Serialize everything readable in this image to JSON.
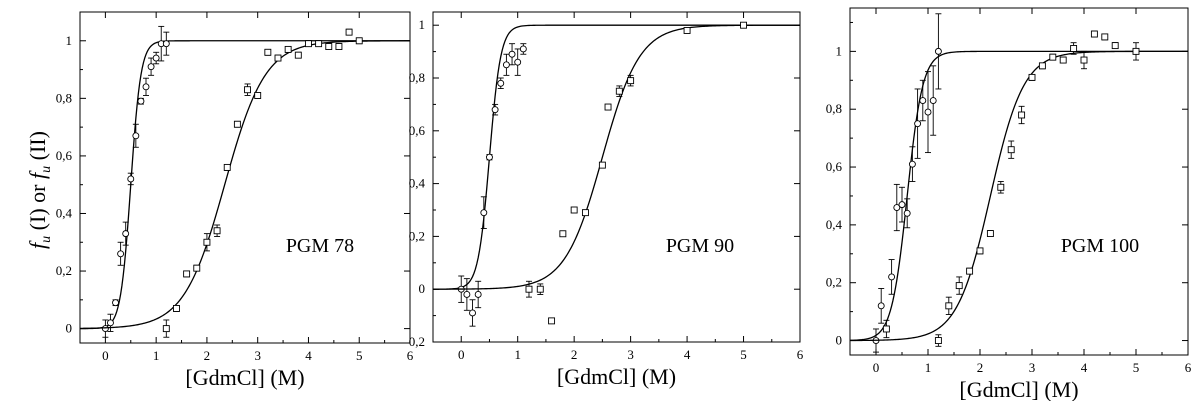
{
  "figure": {
    "ylabel": {
      "f": "f",
      "sub": "u",
      "first": " (I) or ",
      "second": " (II)"
    }
  },
  "chart_data": [
    {
      "type": "scatter",
      "title": "PGM 78",
      "xlabel": "[GdmCl] (M)",
      "xlim": [
        -0.5,
        6
      ],
      "ylim": [
        -0.05,
        1.1
      ],
      "xticks": [
        0,
        1,
        2,
        3,
        4,
        5,
        6
      ],
      "yticks": [
        0,
        0.2,
        0.4,
        0.6,
        0.8,
        1
      ],
      "ytick_labels": [
        "0",
        "0,2",
        "0,4",
        "0,6",
        "0,8",
        "1"
      ],
      "series": [
        {
          "marker": "circle",
          "fit": {
            "midpoint": 0.5,
            "width": 0.1
          },
          "points": [
            {
              "x": 0.0,
              "y": 0.0,
              "err": 0.03
            },
            {
              "x": 0.1,
              "y": 0.02,
              "err": 0.03
            },
            {
              "x": 0.2,
              "y": 0.09,
              "err": 0.01
            },
            {
              "x": 0.3,
              "y": 0.26,
              "err": 0.04
            },
            {
              "x": 0.4,
              "y": 0.33,
              "err": 0.04
            },
            {
              "x": 0.5,
              "y": 0.52,
              "err": 0.02
            },
            {
              "x": 0.6,
              "y": 0.67,
              "err": 0.04
            },
            {
              "x": 0.7,
              "y": 0.79,
              "err": 0.01
            },
            {
              "x": 0.8,
              "y": 0.84,
              "err": 0.03
            },
            {
              "x": 0.9,
              "y": 0.91,
              "err": 0.03
            },
            {
              "x": 1.0,
              "y": 0.94,
              "err": 0.02
            },
            {
              "x": 1.1,
              "y": 0.99,
              "err": 0.06
            },
            {
              "x": 1.2,
              "y": 0.99,
              "err": 0.04
            }
          ]
        },
        {
          "marker": "square",
          "fit": {
            "midpoint": 2.35,
            "width": 0.4
          },
          "points": [
            {
              "x": 1.2,
              "y": 0.0,
              "err": 0.03
            },
            {
              "x": 1.4,
              "y": 0.07,
              "err": 0.01
            },
            {
              "x": 1.6,
              "y": 0.19,
              "err": 0.01
            },
            {
              "x": 1.8,
              "y": 0.21,
              "err": 0.01
            },
            {
              "x": 2.0,
              "y": 0.3,
              "err": 0.03
            },
            {
              "x": 2.2,
              "y": 0.34,
              "err": 0.02
            },
            {
              "x": 2.4,
              "y": 0.56,
              "err": 0.01
            },
            {
              "x": 2.6,
              "y": 0.71,
              "err": 0.01
            },
            {
              "x": 2.8,
              "y": 0.83,
              "err": 0.02
            },
            {
              "x": 3.0,
              "y": 0.81,
              "err": 0.01
            },
            {
              "x": 3.2,
              "y": 0.96,
              "err": 0.01
            },
            {
              "x": 3.4,
              "y": 0.94,
              "err": 0.01
            },
            {
              "x": 3.6,
              "y": 0.97,
              "err": 0.01
            },
            {
              "x": 3.8,
              "y": 0.95,
              "err": 0.01
            },
            {
              "x": 4.0,
              "y": 0.99,
              "err": 0.01
            },
            {
              "x": 4.2,
              "y": 0.99,
              "err": 0.01
            },
            {
              "x": 4.4,
              "y": 0.98,
              "err": 0.01
            },
            {
              "x": 4.6,
              "y": 0.98,
              "err": 0.01
            },
            {
              "x": 4.8,
              "y": 1.03,
              "err": 0.01
            },
            {
              "x": 5.0,
              "y": 1.0,
              "err": 0.01
            }
          ]
        }
      ]
    },
    {
      "type": "scatter",
      "title": "PGM 90",
      "xlabel": "[GdmCl] (M)",
      "xlim": [
        -0.5,
        6
      ],
      "ylim": [
        -0.2,
        1.05
      ],
      "xticks": [
        0,
        1,
        2,
        3,
        4,
        5,
        6
      ],
      "yticks": [
        -0.2,
        0,
        0.2,
        0.4,
        0.6,
        0.8,
        1
      ],
      "ytick_labels": [
        "-0,2",
        "0",
        "0,2",
        "0,4",
        "0,6",
        "0,8",
        "1"
      ],
      "series": [
        {
          "marker": "circle",
          "fit": {
            "midpoint": 0.5,
            "width": 0.1
          },
          "points": [
            {
              "x": 0.0,
              "y": 0.0,
              "err": 0.05
            },
            {
              "x": 0.1,
              "y": -0.02,
              "err": 0.06
            },
            {
              "x": 0.2,
              "y": -0.09,
              "err": 0.05
            },
            {
              "x": 0.3,
              "y": -0.02,
              "err": 0.05
            },
            {
              "x": 0.4,
              "y": 0.29,
              "err": 0.06
            },
            {
              "x": 0.5,
              "y": 0.5,
              "err": 0.01
            },
            {
              "x": 0.6,
              "y": 0.68,
              "err": 0.02
            },
            {
              "x": 0.7,
              "y": 0.78,
              "err": 0.02
            },
            {
              "x": 0.8,
              "y": 0.85,
              "err": 0.04
            },
            {
              "x": 0.9,
              "y": 0.89,
              "err": 0.04
            },
            {
              "x": 1.0,
              "y": 0.86,
              "err": 0.05
            },
            {
              "x": 1.1,
              "y": 0.91,
              "err": 0.02
            }
          ]
        },
        {
          "marker": "square",
          "fit": {
            "midpoint": 2.5,
            "width": 0.33
          },
          "points": [
            {
              "x": 1.2,
              "y": 0.0,
              "err": 0.03
            },
            {
              "x": 1.4,
              "y": 0.0,
              "err": 0.02
            },
            {
              "x": 1.6,
              "y": -0.12,
              "err": 0.005
            },
            {
              "x": 1.8,
              "y": 0.21,
              "err": 0.01
            },
            {
              "x": 2.0,
              "y": 0.3,
              "err": 0.01
            },
            {
              "x": 2.2,
              "y": 0.29,
              "err": 0.01
            },
            {
              "x": 2.5,
              "y": 0.47,
              "err": 0.01
            },
            {
              "x": 2.6,
              "y": 0.69,
              "err": 0.01
            },
            {
              "x": 2.8,
              "y": 0.75,
              "err": 0.02
            },
            {
              "x": 3.0,
              "y": 0.79,
              "err": 0.02
            },
            {
              "x": 4.0,
              "y": 0.98,
              "err": 0.01
            },
            {
              "x": 5.0,
              "y": 1.0,
              "err": 0.01
            }
          ]
        }
      ]
    },
    {
      "type": "scatter",
      "title": "PGM 100",
      "xlabel": "[GdmCl] (M)",
      "xlim": [
        -0.5,
        6
      ],
      "ylim": [
        -0.05,
        1.15
      ],
      "xticks": [
        0,
        1,
        2,
        3,
        4,
        5,
        6
      ],
      "yticks": [
        0,
        0.2,
        0.4,
        0.6,
        0.8,
        1
      ],
      "ytick_labels": [
        "0",
        "0,2",
        "0,4",
        "0,6",
        "0,8",
        "1"
      ],
      "series": [
        {
          "marker": "circle",
          "fit": {
            "midpoint": 0.6,
            "width": 0.15
          },
          "points": [
            {
              "x": 0.0,
              "y": 0.0,
              "err": 0.04
            },
            {
              "x": 0.1,
              "y": 0.12,
              "err": 0.06
            },
            {
              "x": 0.3,
              "y": 0.22,
              "err": 0.06
            },
            {
              "x": 0.4,
              "y": 0.46,
              "err": 0.08
            },
            {
              "x": 0.5,
              "y": 0.47,
              "err": 0.06
            },
            {
              "x": 0.6,
              "y": 0.44,
              "err": 0.05
            },
            {
              "x": 0.7,
              "y": 0.61,
              "err": 0.06
            },
            {
              "x": 0.8,
              "y": 0.75,
              "err": 0.12
            },
            {
              "x": 0.9,
              "y": 0.83,
              "err": 0.07
            },
            {
              "x": 1.0,
              "y": 0.79,
              "err": 0.14
            },
            {
              "x": 1.1,
              "y": 0.83,
              "err": 0.12
            },
            {
              "x": 1.2,
              "y": 1.0,
              "err": 0.13
            }
          ]
        },
        {
          "marker": "square",
          "fit": {
            "midpoint": 2.2,
            "width": 0.32
          },
          "points": [
            {
              "x": 0.2,
              "y": 0.04,
              "err": 0.03
            },
            {
              "x": 1.2,
              "y": 0.0,
              "err": 0.02
            },
            {
              "x": 1.4,
              "y": 0.12,
              "err": 0.03
            },
            {
              "x": 1.6,
              "y": 0.19,
              "err": 0.03
            },
            {
              "x": 1.8,
              "y": 0.24,
              "err": 0.01
            },
            {
              "x": 2.0,
              "y": 0.31,
              "err": 0.01
            },
            {
              "x": 2.2,
              "y": 0.37,
              "err": 0.01
            },
            {
              "x": 2.4,
              "y": 0.53,
              "err": 0.02
            },
            {
              "x": 2.6,
              "y": 0.66,
              "err": 0.03
            },
            {
              "x": 2.8,
              "y": 0.78,
              "err": 0.03
            },
            {
              "x": 3.0,
              "y": 0.91,
              "err": 0.01
            },
            {
              "x": 3.2,
              "y": 0.95,
              "err": 0.01
            },
            {
              "x": 3.4,
              "y": 0.98,
              "err": 0.01
            },
            {
              "x": 3.6,
              "y": 0.97,
              "err": 0.01
            },
            {
              "x": 3.8,
              "y": 1.01,
              "err": 0.02
            },
            {
              "x": 4.0,
              "y": 0.97,
              "err": 0.03
            },
            {
              "x": 4.2,
              "y": 1.06,
              "err": 0.01
            },
            {
              "x": 4.4,
              "y": 1.05,
              "err": 0.01
            },
            {
              "x": 4.6,
              "y": 1.02,
              "err": 0.01
            },
            {
              "x": 5.0,
              "y": 1.0,
              "err": 0.03
            }
          ]
        }
      ]
    }
  ]
}
